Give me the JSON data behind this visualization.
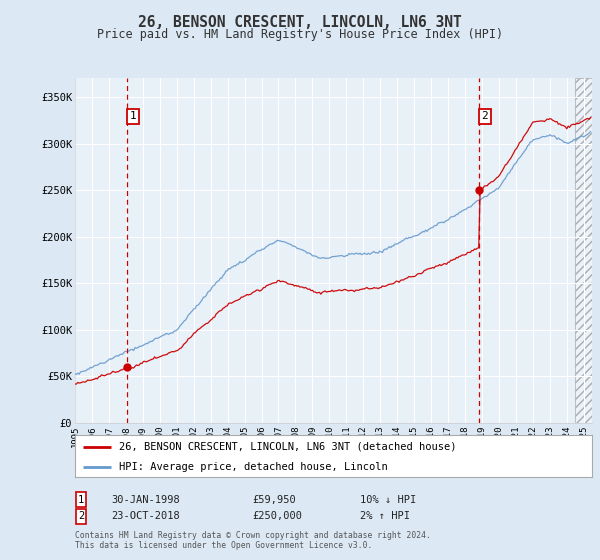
{
  "title": "26, BENSON CRESCENT, LINCOLN, LN6 3NT",
  "subtitle": "Price paid vs. HM Land Registry's House Price Index (HPI)",
  "x_start": 1995.0,
  "x_end": 2025.5,
  "y_min": 0,
  "y_max": 370000,
  "y_ticks": [
    0,
    50000,
    100000,
    150000,
    200000,
    250000,
    300000,
    350000
  ],
  "y_tick_labels": [
    "£0",
    "£50K",
    "£100K",
    "£150K",
    "£200K",
    "£250K",
    "£300K",
    "£350K"
  ],
  "x_ticks": [
    1995,
    1996,
    1997,
    1998,
    1999,
    2000,
    2001,
    2002,
    2003,
    2004,
    2005,
    2006,
    2007,
    2008,
    2009,
    2010,
    2011,
    2012,
    2013,
    2014,
    2015,
    2016,
    2017,
    2018,
    2019,
    2020,
    2021,
    2022,
    2023,
    2024,
    2025
  ],
  "x_tick_labels": [
    "1995",
    "1996",
    "1997",
    "1998",
    "1999",
    "2000",
    "2001",
    "2002",
    "2003",
    "2004",
    "2005",
    "2006",
    "2007",
    "2008",
    "2009",
    "2010",
    "2011",
    "2012",
    "2013",
    "2014",
    "2015",
    "2016",
    "2017",
    "2018",
    "2019",
    "2020",
    "2021",
    "2022",
    "2023",
    "2024",
    "2025"
  ],
  "sale1_x": 1998.08,
  "sale1_y": 59950,
  "sale1_label": "1",
  "sale1_date": "30-JAN-1998",
  "sale1_price": "£59,950",
  "sale1_hpi": "10% ↓ HPI",
  "sale2_x": 2018.81,
  "sale2_y": 250000,
  "sale2_label": "2",
  "sale2_date": "23-OCT-2018",
  "sale2_price": "£250,000",
  "sale2_hpi": "2% ↑ HPI",
  "red_line_color": "#cc0000",
  "blue_line_color": "#6699cc",
  "bg_color": "#dce9f5",
  "plot_bg": "#e8f0f8",
  "grid_color": "#ffffff",
  "marker_box_color": "#cc0000",
  "legend_line1": "26, BENSON CRESCENT, LINCOLN, LN6 3NT (detached house)",
  "legend_line2": "HPI: Average price, detached house, Lincoln",
  "footer": "Contains HM Land Registry data © Crown copyright and database right 2024.\nThis data is licensed under the Open Government Licence v3.0."
}
